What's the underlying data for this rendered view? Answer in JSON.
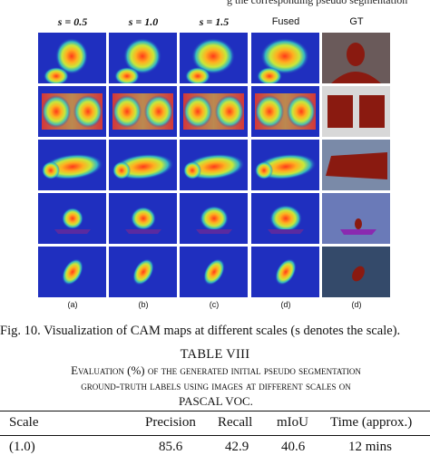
{
  "top_cutoff": "g the corresponding pseudo segmentation",
  "column_headers": [
    {
      "label": "s = 0.5",
      "style": "math"
    },
    {
      "label": "s = 1.0",
      "style": "math"
    },
    {
      "label": "s = 1.5",
      "style": "math"
    },
    {
      "label": "Fused",
      "style": "sans"
    },
    {
      "label": "GT",
      "style": "sans"
    }
  ],
  "subfigure_labels": [
    "(a)",
    "(b)",
    "(c)",
    "(d)",
    "(d)"
  ],
  "rows": [
    {
      "subject": "person",
      "bg": "#4a5a8a"
    },
    {
      "subject": "monitor",
      "bg": "#c0c4cc"
    },
    {
      "subject": "train",
      "bg": "#4b5c86"
    },
    {
      "subject": "boat",
      "bg": "#5a6aa8"
    },
    {
      "subject": "bird",
      "bg": "#2a3e80"
    }
  ],
  "colors": {
    "cam_low": "#1f2fbf",
    "cam_mid": "#38d0c0",
    "cam_high": "#ff3a1a",
    "gt_mask": "#8a1a10"
  },
  "figure_caption": "Fig. 10.  Visualization of CAM maps at different scales (s denotes the scale).",
  "table": {
    "title": "TABLE VIII",
    "caption_lines": [
      "Evaluation (%) of the generated initial pseudo segmentation",
      "ground-truth labels using images at different scales on",
      "PASCAL VOC."
    ],
    "headers": [
      "Scale",
      "Precision",
      "Recall",
      "mIoU",
      "Time (approx.)"
    ],
    "first_row": [
      "(1.0)",
      "85.6",
      "42.9",
      "40.6",
      "12 mins"
    ]
  }
}
